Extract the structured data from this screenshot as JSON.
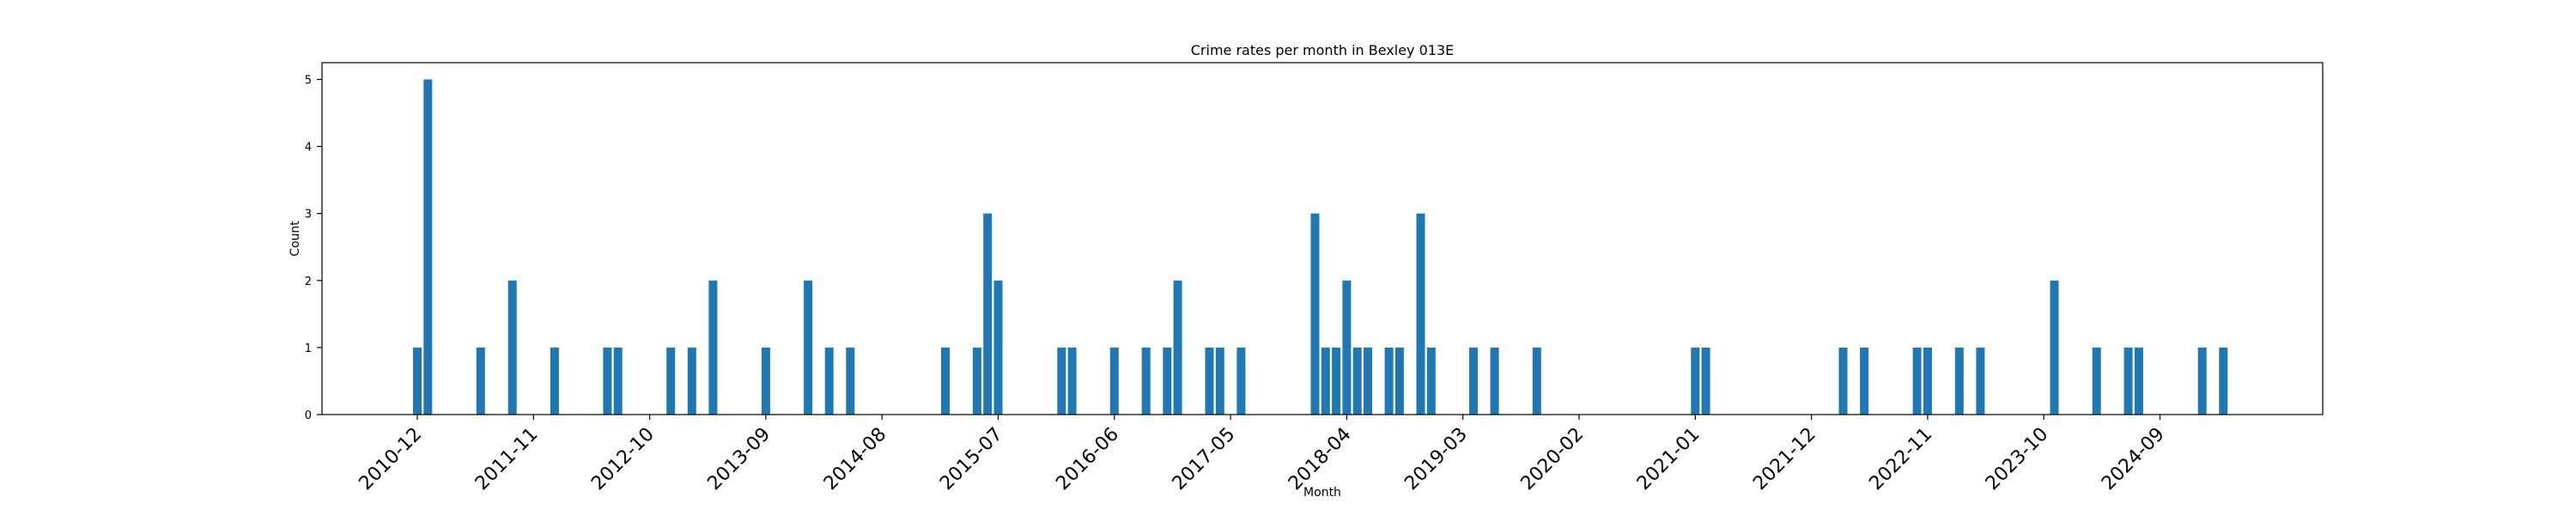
{
  "chart_data": {
    "type": "bar",
    "title": "Crime rates per month in Bexley 013E",
    "xlabel": "Month",
    "ylabel": "Count",
    "ylim": [
      0,
      5.25
    ],
    "yticks": [
      0,
      1,
      2,
      3,
      4,
      5
    ],
    "xtick_labels": [
      "2010-12",
      "2011-11",
      "2012-10",
      "2013-09",
      "2014-08",
      "2015-07",
      "2016-06",
      "2017-05",
      "2018-04",
      "2019-03",
      "2020-02",
      "2021-01",
      "2021-12",
      "2022-11",
      "2023-10",
      "2024-09"
    ],
    "bar_color": "#1f77b4",
    "grid": false,
    "x": [
      "2010-12",
      "2011-01",
      "2011-06",
      "2011-09",
      "2012-01",
      "2012-06",
      "2012-07",
      "2012-12",
      "2013-02",
      "2013-04",
      "2013-09",
      "2014-01",
      "2014-03",
      "2014-05",
      "2015-02",
      "2015-05",
      "2015-06",
      "2015-07",
      "2016-01",
      "2016-02",
      "2016-06",
      "2016-09",
      "2016-11",
      "2016-12",
      "2017-03",
      "2017-04",
      "2017-06",
      "2018-01",
      "2018-02",
      "2018-03",
      "2018-04",
      "2018-05",
      "2018-06",
      "2018-08",
      "2018-09",
      "2018-11",
      "2018-12",
      "2019-04",
      "2019-06",
      "2019-10",
      "2021-01",
      "2021-02",
      "2022-03",
      "2022-05",
      "2022-10",
      "2022-11",
      "2023-02",
      "2023-04",
      "2023-11",
      "2024-03",
      "2024-06",
      "2024-07",
      "2025-01",
      "2025-03"
    ],
    "values": [
      1,
      5,
      1,
      2,
      1,
      1,
      1,
      1,
      1,
      2,
      1,
      2,
      1,
      1,
      1,
      1,
      3,
      2,
      1,
      1,
      1,
      1,
      1,
      2,
      1,
      1,
      1,
      3,
      1,
      1,
      2,
      1,
      1,
      1,
      1,
      3,
      1,
      1,
      1,
      1,
      1,
      1,
      1,
      1,
      1,
      1,
      1,
      1,
      2,
      1,
      1,
      1,
      1,
      1
    ]
  }
}
